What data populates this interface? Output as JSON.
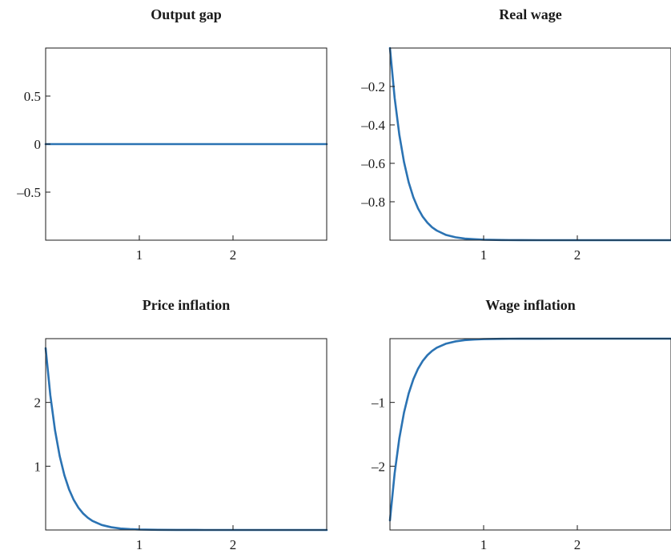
{
  "chart_data": [
    {
      "type": "line",
      "title": "Output gap",
      "xlabel": "",
      "ylabel": "",
      "xlim": [
        0,
        3
      ],
      "ylim": [
        -1,
        1
      ],
      "xticks": [
        1,
        2
      ],
      "xtick_labels": [
        "1",
        "2"
      ],
      "yticks": [
        -0.5,
        0,
        0.5
      ],
      "ytick_labels": [
        "–0.5",
        "0",
        "0.5"
      ],
      "grid": false,
      "series": [
        {
          "color": "#2b73b3",
          "x": [
            0,
            0.5,
            1,
            1.5,
            2,
            2.5,
            3
          ],
          "y": [
            0,
            0,
            0,
            0,
            0,
            0,
            0
          ]
        }
      ]
    },
    {
      "type": "line",
      "title": "Real wage",
      "xlabel": "",
      "ylabel": "",
      "xlim": [
        0,
        3
      ],
      "ylim": [
        -1,
        0
      ],
      "xticks": [
        1,
        2
      ],
      "xtick_labels": [
        "1",
        "2"
      ],
      "yticks": [
        -0.8,
        -0.6,
        -0.4,
        -0.2
      ],
      "ytick_labels": [
        "–0.8",
        "–0.6",
        "–0.4",
        "–0.2"
      ],
      "grid": false,
      "series": [
        {
          "color": "#2b73b3",
          "x": [
            0,
            0.05,
            0.1,
            0.15,
            0.2,
            0.25,
            0.3,
            0.35,
            0.4,
            0.45,
            0.5,
            0.6,
            0.7,
            0.8,
            0.9,
            1.0,
            1.2,
            1.4,
            1.6,
            1.8,
            2.0,
            2.5,
            3.0
          ],
          "y": [
            0,
            -0.259,
            -0.451,
            -0.593,
            -0.699,
            -0.777,
            -0.835,
            -0.878,
            -0.909,
            -0.933,
            -0.95,
            -0.973,
            -0.985,
            -0.992,
            -0.995,
            -0.9975,
            -0.9993,
            -0.9998,
            -0.99995,
            -1,
            -1,
            -1,
            -1
          ]
        }
      ]
    },
    {
      "type": "line",
      "title": "Price inflation",
      "xlabel": "",
      "ylabel": "",
      "xlim": [
        0,
        3
      ],
      "ylim": [
        0,
        3
      ],
      "xticks": [
        1,
        2
      ],
      "xtick_labels": [
        "1",
        "2"
      ],
      "yticks": [
        1,
        2
      ],
      "ytick_labels": [
        "1",
        "2"
      ],
      "grid": false,
      "series": [
        {
          "color": "#2b73b3",
          "x": [
            0,
            0.05,
            0.1,
            0.15,
            0.2,
            0.25,
            0.3,
            0.35,
            0.4,
            0.45,
            0.5,
            0.6,
            0.7,
            0.8,
            0.9,
            1.0,
            1.2,
            1.4,
            1.6,
            1.8,
            2.0,
            2.5,
            3.0
          ],
          "y": [
            2.85,
            2.112,
            1.564,
            1.159,
            0.859,
            0.636,
            0.471,
            0.349,
            0.259,
            0.192,
            0.142,
            0.078,
            0.043,
            0.023,
            0.013,
            0.007,
            0.002,
            0.0006,
            0.0002,
            5e-05,
            1e-05,
            0,
            0
          ]
        }
      ]
    },
    {
      "type": "line",
      "title": "Wage inflation",
      "xlabel": "",
      "ylabel": "",
      "xlim": [
        0,
        3
      ],
      "ylim": [
        -3,
        0
      ],
      "xticks": [
        1,
        2
      ],
      "xtick_labels": [
        "1",
        "2"
      ],
      "yticks": [
        -2,
        -1
      ],
      "ytick_labels": [
        "–2",
        "–1"
      ],
      "grid": false,
      "series": [
        {
          "color": "#2b73b3",
          "x": [
            0,
            0.05,
            0.1,
            0.15,
            0.2,
            0.25,
            0.3,
            0.35,
            0.4,
            0.45,
            0.5,
            0.6,
            0.7,
            0.8,
            0.9,
            1.0,
            1.2,
            1.4,
            1.6,
            1.8,
            2.0,
            2.5,
            3.0
          ],
          "y": [
            -2.85,
            -2.112,
            -1.564,
            -1.159,
            -0.859,
            -0.636,
            -0.471,
            -0.349,
            -0.259,
            -0.192,
            -0.142,
            -0.078,
            -0.043,
            -0.023,
            -0.013,
            -0.007,
            -0.002,
            -0.0006,
            -0.0002,
            -5e-05,
            -1e-05,
            0,
            0
          ]
        }
      ]
    }
  ]
}
